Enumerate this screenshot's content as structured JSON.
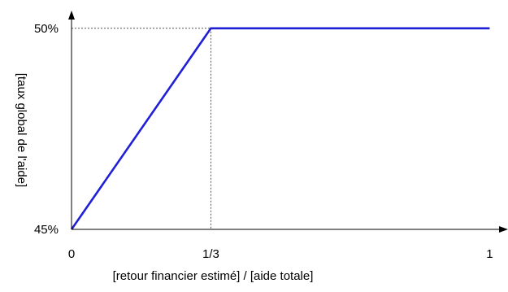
{
  "chart_data": {
    "type": "line",
    "xlabel": "[retour financier estimé] / [aide totale]",
    "ylabel": "[taux global de l'aide]",
    "x_tick_labels": [
      "0",
      "1/3",
      "1"
    ],
    "y_tick_labels": [
      "45%",
      "50%"
    ],
    "x_ticks": [
      0,
      0.3333,
      1
    ],
    "y_ticks": [
      45,
      50
    ],
    "xlim": [
      0,
      1.04
    ],
    "ylim": [
      45,
      50.4
    ],
    "grid": false,
    "series": [
      {
        "x": [
          0,
          0.3333,
          1
        ],
        "y": [
          45,
          50,
          50
        ],
        "color": "#1F1FD6"
      }
    ],
    "guides": {
      "x": 0.3333,
      "y": 50,
      "style": "dotted",
      "color": "#555555"
    },
    "axis_color": "#000000"
  }
}
